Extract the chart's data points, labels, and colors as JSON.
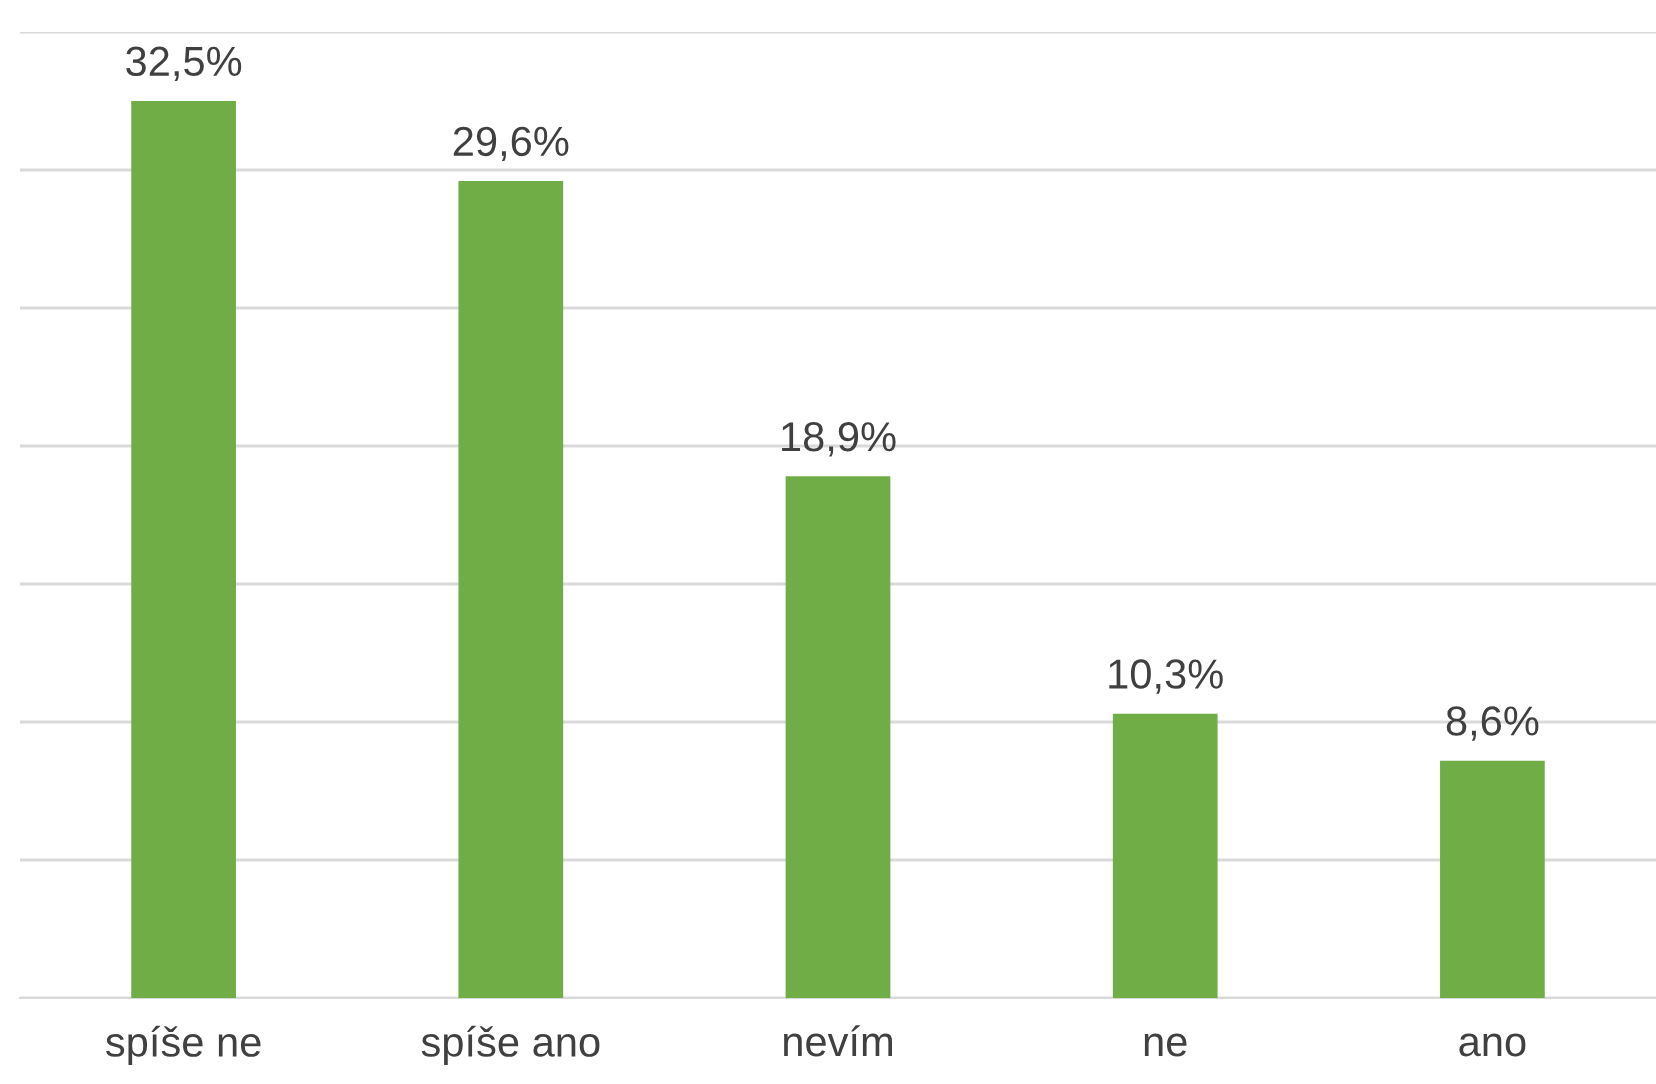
{
  "chart_data": {
    "type": "bar",
    "categories": [
      "spíše ne",
      "spíše ano",
      "nevím",
      "ne",
      "ano"
    ],
    "values": [
      32.5,
      29.6,
      18.9,
      10.3,
      8.6
    ],
    "value_labels": [
      "32,5%",
      "29,6%",
      "18,9%",
      "10,3%",
      "8,6%"
    ],
    "color": "#70ad47",
    "ylim": [
      0,
      35
    ],
    "yticks": [
      {
        "value": 0,
        "label": null
      },
      {
        "value": 5,
        "label": null
      },
      {
        "value": 10,
        "label": null
      },
      {
        "value": 15,
        "label": null
      },
      {
        "value": 20,
        "label": null
      },
      {
        "value": 25,
        "label": null
      },
      {
        "value": 30,
        "label": null
      },
      {
        "value": 35,
        "label": null
      }
    ],
    "tick_labels": "x",
    "grid": "y",
    "legend": false
  }
}
